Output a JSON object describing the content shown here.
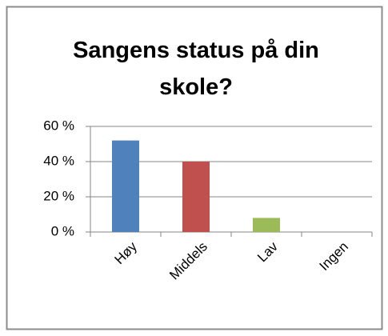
{
  "chart_data": {
    "type": "bar",
    "title": "Sangens status på din skole?",
    "categories": [
      "Høy",
      "Middels",
      "Lav",
      "Ingen"
    ],
    "values": [
      52,
      40,
      8,
      0
    ],
    "colors": [
      "#4f81bd",
      "#c0504d",
      "#9bbb59",
      "#8064a2"
    ],
    "ylim": [
      0,
      60
    ],
    "yticks": [
      {
        "value": 0,
        "label": "0 %"
      },
      {
        "value": 20,
        "label": "20 %"
      },
      {
        "value": 40,
        "label": "40 %"
      },
      {
        "value": 60,
        "label": "60 %"
      }
    ],
    "grid": true
  }
}
